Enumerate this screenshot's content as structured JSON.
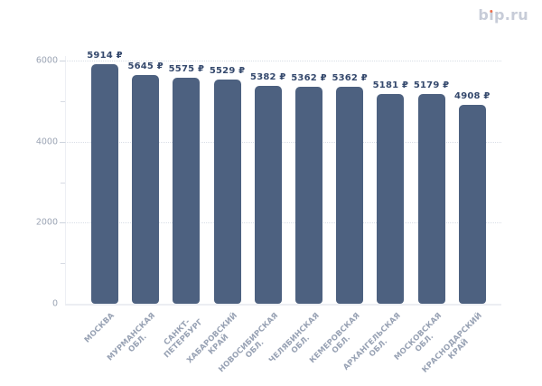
{
  "brand": {
    "logo_text": "bip.ru",
    "logo_color": "#c7ccd8",
    "logo_dot_color": "#ee6f4c"
  },
  "chart_data": {
    "type": "bar",
    "title": "",
    "xlabel": "",
    "ylabel": "",
    "categories": [
      "МОСКВА",
      "МУРМАНСКАЯ ОБЛ.",
      "САНКТ-ПЕТЕРБУРГ",
      "ХАБАРОВСКИЙ КРАЙ",
      "НОВОСИБИРСКАЯ ОБЛ.",
      "ЧЕЛЯБИНСКАЯ ОБЛ.",
      "КЕМЕРОВСКАЯ ОБЛ.",
      "АРХАНГЕЛЬСКАЯ ОБЛ.",
      "МОСКОВСКАЯ ОБЛ.",
      "КРАСНОДАРСКИЙ КРАЙ"
    ],
    "category_lines": [
      [
        "МОСКВА"
      ],
      [
        "МУРМАНСКАЯ",
        "ОБЛ."
      ],
      [
        "САНКТ-",
        "ПЕТЕРБУРГ"
      ],
      [
        "ХАБАРОВСКИЙ",
        "КРАЙ"
      ],
      [
        "НОВОСИБИРСКАЯ",
        "ОБЛ."
      ],
      [
        "ЧЕЛЯБИНСКАЯ",
        "ОБЛ."
      ],
      [
        "КЕМЕРОВСКАЯ",
        "ОБЛ."
      ],
      [
        "АРХАНГЕЛЬСКАЯ",
        "ОБЛ."
      ],
      [
        "МОСКОВСКАЯ",
        "ОБЛ."
      ],
      [
        "КРАСНОДАРСКИЙ",
        "КРАЙ"
      ]
    ],
    "values": [
      5914,
      5645,
      5575,
      5529,
      5382,
      5362,
      5362,
      5181,
      5179,
      4908
    ],
    "value_labels": [
      "5914 ₽",
      "5645 ₽",
      "5575 ₽",
      "5529 ₽",
      "5382 ₽",
      "5362 ₽",
      "5362 ₽",
      "5181 ₽",
      "5179 ₽",
      "4908 ₽"
    ],
    "y_ticks": [
      0,
      2000,
      4000,
      6000
    ],
    "y_tick_labels": [
      "0",
      "2000",
      "4000",
      "6000"
    ],
    "y_minor_ticks": [
      1000,
      3000,
      5000
    ],
    "ylim": [
      0,
      6000
    ],
    "grid": "dotted horizontal lines at major y ticks",
    "legend": false,
    "bar_color": "#4d6180",
    "value_label_color": "#35496d",
    "y_label_color": "#9ba4b4",
    "x_label_color": "#98a2b4"
  }
}
